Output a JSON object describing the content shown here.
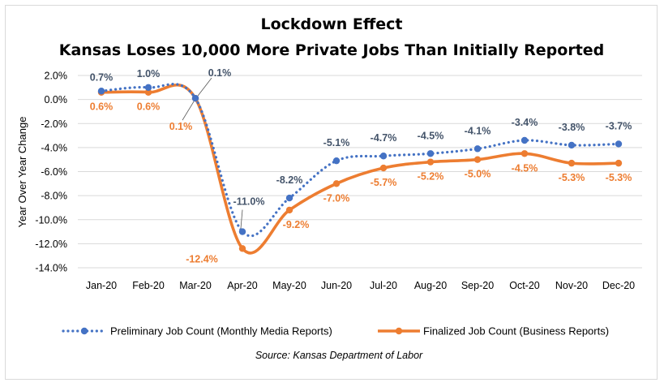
{
  "chart_data": {
    "type": "line",
    "title": [
      "Lockdown Effect",
      "Kansas Loses 10,000 More Private Jobs Than Initially Reported"
    ],
    "xlabel": "",
    "ylabel": "Year Over Year Change",
    "categories": [
      "Jan-20",
      "Feb-20",
      "Mar-20",
      "Apr-20",
      "May-20",
      "Jun-20",
      "Jul-20",
      "Aug-20",
      "Sep-20",
      "Oct-20",
      "Nov-20",
      "Dec-20"
    ],
    "ylim": [
      -14.0,
      2.0
    ],
    "yticks": [
      2.0,
      0.0,
      -2.0,
      -4.0,
      -6.0,
      -8.0,
      -10.0,
      -12.0,
      -14.0
    ],
    "ytick_labels": [
      "2.0%",
      "0.0%",
      "-2.0%",
      "-4.0%",
      "-6.0%",
      "-8.0%",
      "-10.0%",
      "-12.0%",
      "-14.0%"
    ],
    "grid": true,
    "legend_position": "bottom",
    "series": [
      {
        "name": "Preliminary Job Count (Monthly Media Reports)",
        "color": "#4472c4",
        "label_color": "#44546a",
        "style": "dotted-with-markers",
        "values": [
          0.7,
          1.0,
          0.1,
          -11.0,
          -8.2,
          -5.1,
          -4.7,
          -4.5,
          -4.1,
          -3.4,
          -3.8,
          -3.7
        ],
        "labels": [
          "0.7%",
          "1.0%",
          "0.1%",
          "-11.0%",
          "-8.2%",
          "-5.1%",
          "-4.7%",
          "-4.5%",
          "-4.1%",
          "-3.4%",
          "-3.8%",
          "-3.7%"
        ]
      },
      {
        "name": "Finalized Job Count (Business Reports)",
        "color": "#ed7d31",
        "label_color": "#ed7d31",
        "style": "solid-smooth-with-markers",
        "values": [
          0.6,
          0.6,
          0.1,
          -12.4,
          -9.2,
          -7.0,
          -5.7,
          -5.2,
          -5.0,
          -4.5,
          -5.3,
          -5.3
        ],
        "labels": [
          "0.6%",
          "0.6%",
          "0.1%",
          "-12.4%",
          "-9.2%",
          "-7.0%",
          "-5.7%",
          "-5.2%",
          "-5.0%",
          "-4.5%",
          "-5.3%",
          "-5.3%"
        ]
      }
    ],
    "source": "Source: Kansas Department of Labor"
  }
}
